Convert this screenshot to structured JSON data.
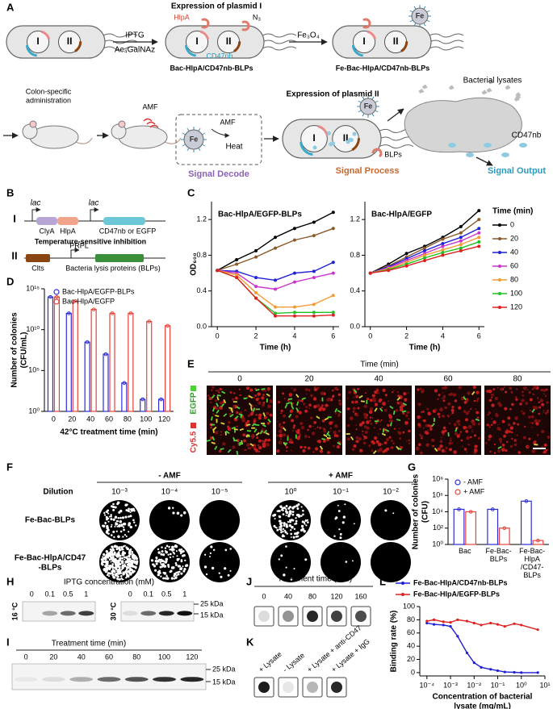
{
  "letters": [
    "A",
    "B",
    "C",
    "D",
    "E",
    "F",
    "G",
    "H",
    "I",
    "J",
    "K",
    "L"
  ],
  "panel_a": {
    "expression_1": "Expression of plasmid I",
    "hlpa": "HlpA",
    "n3": "N₃",
    "cd47nb": "CD47nb",
    "plasmid_1": "I",
    "plasmid_2": "II",
    "iptg": "IPTG",
    "ac4galnaz": "Ac₄GalNAz",
    "strain_1": "Bac-HlpA/CD47nb-BLPs",
    "fe3o4": "Fe₃O₄",
    "fe": "Fe",
    "strain_2": "Fe-Bac-HlpA/CD47nb-BLPs",
    "administration": [
      "Colon-specific",
      "administration"
    ],
    "amf": "AMF",
    "heat": "Heat",
    "signal_decode": "Signal Decode",
    "expression_2": "Expression of plasmid II",
    "blps": "BLPs",
    "signal_process": "Signal Process",
    "lysates": "Bacterial lysates",
    "signal_output": "Signal Output"
  },
  "panel_b": {
    "plasmid_1": "I",
    "plasmid_2": "II",
    "lac": "lac",
    "clya": "ClyA",
    "hlpa": "HlpA",
    "reporter": "CD47nb or EGFP",
    "inhibition": "Temperature-sensitive inhibition",
    "clts": "Clts",
    "promoter": "PRPL",
    "lysis": "Bacteria lysis proteins (BLPs)"
  },
  "panel_e": {
    "header": "Time (min)",
    "times": [
      "0",
      "20",
      "40",
      "60",
      "80"
    ],
    "channels": [
      "EGFP",
      "Cy5.5"
    ]
  },
  "panel_f": {
    "minus": "- AMF",
    "plus": "+ AMF",
    "dilution": "Dilution",
    "dilutions_minus": [
      "10⁻³",
      "10⁻⁴",
      "10⁻⁵"
    ],
    "dilutions_plus": [
      "10⁰",
      "10⁻¹",
      "10⁻²"
    ],
    "rows": [
      [
        "Fe-Bac-BLPs"
      ],
      [
        "Fe-Bac-HlpA/CD47",
        "-BLPs"
      ]
    ]
  },
  "panel_h": {
    "header": "IPTG concentration (mM)",
    "lanes": [
      "0",
      "0.1",
      "0.5",
      "1"
    ],
    "temps": [
      "16 °C",
      "30 °C"
    ],
    "markers": [
      "25 kDa",
      "15 kDa"
    ]
  },
  "panel_i": {
    "header": "Treatment time (min)",
    "lanes": [
      "0",
      "20",
      "40",
      "60",
      "80",
      "100",
      "120"
    ],
    "markers": [
      "25 kDa",
      "15 kDa"
    ]
  },
  "panel_j": {
    "header": "Treatment time (min)",
    "lanes": [
      "0",
      "40",
      "80",
      "120",
      "160"
    ]
  },
  "panel_k": {
    "lanes": [
      "+ Lysate",
      "- Lysate",
      "+ Lysate + anti-CD47",
      "+ Lysate + IgG"
    ]
  },
  "chart_data": [
    {
      "type": "line",
      "title": "Bac-HlpA/EGFP-BLPs",
      "xlabel": "Time (h)",
      "ylabel": "OD₆₀₀",
      "x": [
        0,
        1,
        2,
        3,
        4,
        5,
        6
      ],
      "xlim": [
        -0.3,
        6.3
      ],
      "xticks": [
        0,
        2,
        4,
        6
      ],
      "ylim": [
        0,
        1.4
      ],
      "yticks": [
        {
          "value": 0,
          "label": "0.0"
        },
        0.4,
        0.8,
        1.2
      ],
      "series": [
        {
          "color": "#000000",
          "values": [
            0.63,
            0.75,
            0.85,
            1.0,
            1.1,
            1.17,
            1.28
          ]
        },
        {
          "color": "#8b5a2b",
          "values": [
            0.63,
            0.7,
            0.78,
            0.88,
            0.97,
            1.02,
            1.1
          ]
        },
        {
          "color": "#1f1fd6",
          "values": [
            0.63,
            0.62,
            0.55,
            0.52,
            0.6,
            0.62,
            0.72
          ]
        },
        {
          "color": "#cc33cc",
          "values": [
            0.63,
            0.6,
            0.45,
            0.42,
            0.5,
            0.55,
            0.6
          ]
        },
        {
          "color": "#f39c34",
          "values": [
            0.63,
            0.58,
            0.38,
            0.22,
            0.22,
            0.25,
            0.35
          ]
        },
        {
          "color": "#22c022",
          "values": [
            0.63,
            0.55,
            0.32,
            0.15,
            0.16,
            0.16,
            0.16
          ]
        },
        {
          "color": "#e02020",
          "values": [
            0.63,
            0.55,
            0.32,
            0.12,
            0.12,
            0.12,
            0.13
          ]
        }
      ]
    },
    {
      "type": "line",
      "title": "Bac-HlpA/EGFP",
      "xlabel": "Time (h)",
      "legend": "right",
      "legend_title": "Time (min)",
      "x": [
        0,
        1,
        2,
        3,
        4,
        5,
        6
      ],
      "xlim": [
        -0.3,
        6.3
      ],
      "xticks": [
        0,
        2,
        4,
        6
      ],
      "ylim": [
        0,
        1.4
      ],
      "yticks": [
        {
          "value": 0,
          "label": "0.0"
        },
        0.4,
        0.8,
        1.2
      ],
      "series": [
        {
          "name": "0",
          "color": "#000000",
          "values": [
            0.6,
            0.7,
            0.82,
            0.9,
            1.0,
            1.12,
            1.3
          ]
        },
        {
          "name": "20",
          "color": "#8b5a2b",
          "values": [
            0.6,
            0.68,
            0.78,
            0.88,
            0.98,
            1.05,
            1.2
          ]
        },
        {
          "name": "40",
          "color": "#1f1fd6",
          "values": [
            0.6,
            0.67,
            0.76,
            0.85,
            0.93,
            1.0,
            1.1
          ]
        },
        {
          "name": "60",
          "color": "#cc33cc",
          "values": [
            0.6,
            0.66,
            0.74,
            0.82,
            0.9,
            0.96,
            1.05
          ]
        },
        {
          "name": "80",
          "color": "#f39c34",
          "values": [
            0.6,
            0.65,
            0.72,
            0.8,
            0.86,
            0.92,
            1.0
          ]
        },
        {
          "name": "100",
          "color": "#22c022",
          "values": [
            0.6,
            0.64,
            0.7,
            0.77,
            0.83,
            0.88,
            0.95
          ]
        },
        {
          "name": "120",
          "color": "#e02020",
          "values": [
            0.6,
            0.63,
            0.68,
            0.74,
            0.8,
            0.85,
            0.9
          ]
        }
      ]
    },
    {
      "type": "bar",
      "xlabel": "42°C treatment time (min)",
      "ylabel": [
        "Number of colonies",
        "(CFU/mL)"
      ],
      "log_y": true,
      "legend": "top",
      "categories": [
        "0",
        "20",
        "40",
        "60",
        "80",
        "100",
        "120"
      ],
      "ylim": [
        1,
        1000000000000000.0
      ],
      "yticks": [
        {
          "value": 1,
          "label": "10⁰"
        },
        {
          "value": 100000,
          "label": "10⁵"
        },
        {
          "value": 10000000000.0,
          "label": "10¹⁰"
        },
        {
          "value": 1000000000000000.0,
          "label": "10¹⁵"
        }
      ],
      "series": [
        {
          "name": "Bac-HlpA/EGFP-BLPs",
          "color": "#2c2cd6",
          "values": [
            100000000000000.0,
            1000000000000.0,
            300000000.0,
            10000000.0,
            3000,
            30,
            30
          ]
        },
        {
          "name": "Bac-HlpA/EGFP",
          "color": "#e8433a",
          "values": [
            100000000000000.0,
            30000000000000.0,
            3000000000000.0,
            1000000000000.0,
            1000000000000.0,
            100000000000.0,
            30000000000.0
          ]
        }
      ]
    },
    {
      "type": "bar",
      "ylabel": [
        "Number of colonies",
        "(CFU)"
      ],
      "log_y": true,
      "legend": "top",
      "categories": [
        "Bac",
        "Fe-Bac-BLPs",
        "Fe-Bac-HlpA /CD47-BLPs"
      ],
      "ylim": [
        1,
        100000000.0
      ],
      "yticks": [
        {
          "value": 1,
          "label": "10⁰"
        },
        {
          "value": 100,
          "label": "10²"
        },
        {
          "value": 10000,
          "label": "10⁴"
        },
        {
          "value": 1000000,
          "label": "10⁶"
        },
        {
          "value": 100000000,
          "label": "10⁸"
        }
      ],
      "series": [
        {
          "name": "- AMF",
          "color": "#2c2cd6",
          "values": [
            20000,
            20000,
            200000
          ]
        },
        {
          "name": "+ AMF",
          "color": "#e8433a",
          "values": [
            10000,
            100,
            3
          ]
        }
      ]
    },
    {
      "type": "line",
      "xlabel": [
        "Concentration of bacterial",
        "lysate (mg/mL)"
      ],
      "ylabel": "Binding rate (%)",
      "log_x": true,
      "legend": "top",
      "x": [
        0.0001,
        0.0002,
        0.0005,
        0.001,
        0.002,
        0.005,
        0.01,
        0.02,
        0.05,
        0.1,
        0.2,
        0.5,
        1,
        5
      ],
      "xlim": [
        5e-05,
        10
      ],
      "xticks": [
        {
          "value": 0.0001,
          "label": "10⁻⁴"
        },
        {
          "value": 0.001,
          "label": "10⁻³"
        },
        {
          "value": 0.01,
          "label": "10⁻²"
        },
        {
          "value": 0.1,
          "label": "10⁻¹"
        },
        {
          "value": 1,
          "label": "10⁰"
        },
        {
          "value": 10,
          "label": "10¹"
        }
      ],
      "ylim": [
        -5,
        100
      ],
      "yticks": [
        0,
        20,
        40,
        60,
        80,
        100
      ],
      "series": [
        {
          "name": "Fe-Bac-HlpA/CD47nb-BLPs",
          "color": "#1f1fd6",
          "values": [
            75,
            73,
            72,
            70,
            55,
            30,
            15,
            8,
            5,
            3,
            1,
            0.5,
            0,
            0
          ]
        },
        {
          "name": "Fe-Bac-HlpA/EGFP-BLPs",
          "color": "#e02020",
          "values": [
            78,
            80,
            77,
            76,
            80,
            78,
            75,
            72,
            75,
            73,
            70,
            74,
            72,
            65
          ]
        }
      ]
    }
  ]
}
